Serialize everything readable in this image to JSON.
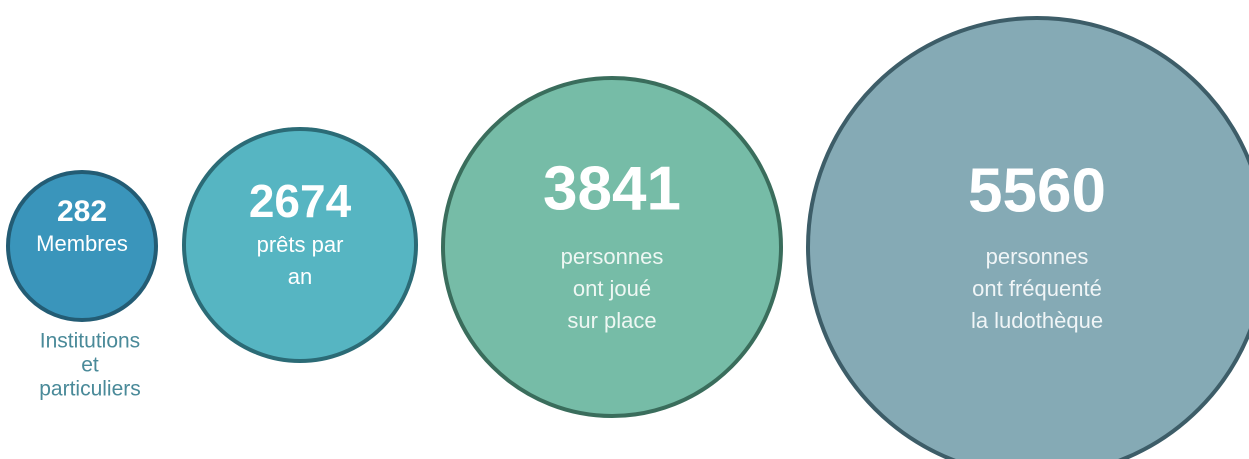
{
  "items": [
    {
      "number": 282,
      "lines": [
        "Membres"
      ],
      "note": [
        "Institutions",
        "et",
        "particuliers"
      ]
    },
    {
      "number": 2674,
      "lines": [
        "prêts par",
        "an"
      ]
    },
    {
      "number": 3841,
      "lines": [
        "personnes",
        "ont joué",
        "sur place"
      ]
    },
    {
      "number": 5560,
      "lines": [
        "personnes",
        "ont fréquenté",
        "la ludothèque"
      ]
    }
  ]
}
